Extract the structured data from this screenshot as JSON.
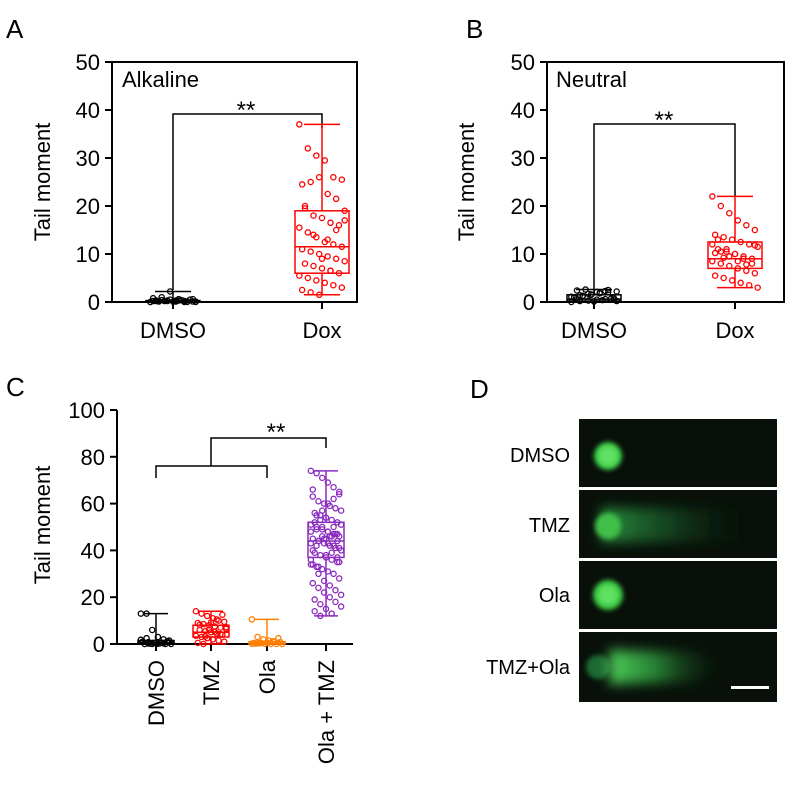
{
  "chart_data": [
    {
      "panel_letter": "A",
      "type": "boxplot",
      "inset_label": "Alkaline",
      "ylabel": "Tail moment",
      "ylim": [
        0,
        50
      ],
      "yticks": [
        "0",
        "10",
        "20",
        "30",
        "40",
        "50"
      ],
      "categories": [
        "DMSO",
        "Dox"
      ],
      "significance": "**",
      "series": [
        {
          "name": "DMSO",
          "color": "#000000",
          "min": 0,
          "q1": 0,
          "median": 0,
          "q3": 0.3,
          "max": 2.2,
          "points": [
            0,
            0.1,
            0.2,
            0.3,
            0,
            0.1,
            0.2,
            0.4,
            0.5,
            0.6,
            0,
            0.1,
            0.3,
            0.2,
            0.1,
            0.4,
            0.5,
            0,
            0.2,
            0.3,
            0.1,
            0.2,
            0.6,
            0.8,
            1.0,
            2.2,
            0.3,
            0.1,
            0,
            0.2
          ]
        },
        {
          "name": "Dox",
          "color": "#ff0000",
          "min": 1.5,
          "q1": 6,
          "median": 11.5,
          "q3": 19,
          "max": 37,
          "points": [
            37,
            32,
            30.5,
            29.5,
            26,
            25.5,
            24.5,
            25,
            26,
            22.5,
            21.5,
            19,
            19.5,
            18,
            17.5,
            16.5,
            16,
            15.5,
            14.5,
            13.5,
            12.5,
            12,
            11.5,
            11,
            10.5,
            10,
            9.5,
            9,
            8.5,
            8,
            7.5,
            7,
            6.5,
            6,
            5.5,
            5,
            4.5,
            4,
            3.5,
            3,
            2.5,
            2,
            1.5,
            13,
            15,
            17,
            20,
            14,
            9,
            6.5
          ]
        }
      ]
    },
    {
      "panel_letter": "B",
      "type": "boxplot",
      "inset_label": "Neutral",
      "ylabel": "Tail moment",
      "ylim": [
        0,
        50
      ],
      "yticks": [
        "0",
        "10",
        "20",
        "30",
        "40",
        "50"
      ],
      "categories": [
        "DMSO",
        "Dox"
      ],
      "significance": "**",
      "series": [
        {
          "name": "DMSO",
          "color": "#000000",
          "min": 0,
          "q1": 0.2,
          "median": 0.6,
          "q3": 1.5,
          "max": 2.6,
          "points": [
            0,
            0.2,
            0.3,
            0.5,
            0.6,
            0.8,
            1.0,
            1.2,
            1.5,
            1.8,
            2.0,
            2.2,
            2.4,
            2.6,
            0.1,
            0.4,
            0.7,
            1.1,
            1.4,
            1.7,
            2.1,
            2.3,
            0.5,
            0.9,
            1.3,
            1.6,
            1.9,
            2.5,
            0.2,
            0.6
          ]
        },
        {
          "name": "Dox",
          "color": "#ff0000",
          "min": 3,
          "q1": 7,
          "median": 9,
          "q3": 12.5,
          "max": 22,
          "points": [
            22,
            20,
            18.5,
            17,
            16,
            15,
            14,
            13.5,
            13,
            12.5,
            12,
            11.5,
            11,
            10.5,
            10,
            9.5,
            9,
            8.5,
            8,
            7.5,
            7,
            6.5,
            6,
            5.5,
            5,
            4.5,
            4,
            3.5,
            3,
            13,
            11,
            10,
            9,
            8,
            12,
            10.5,
            9.5,
            8.5,
            7.8,
            11.8,
            10.2,
            9.2
          ]
        }
      ]
    },
    {
      "panel_letter": "C",
      "type": "boxplot",
      "ylabel": "Tail moment",
      "ylim": [
        0,
        100
      ],
      "yticks": [
        "0",
        "20",
        "40",
        "60",
        "80",
        "100"
      ],
      "categories": [
        "DMSO",
        "TMZ",
        "Ola",
        "Ola + TMZ"
      ],
      "significance": "**",
      "series": [
        {
          "name": "DMSO",
          "color": "#000000",
          "min": 0,
          "q1": 0,
          "median": 0.5,
          "q3": 1.5,
          "max": 13,
          "points": [
            13,
            13,
            6,
            3,
            2,
            1.5,
            1,
            0.8,
            0.5,
            0.3,
            0,
            0,
            0,
            0.2,
            0.4,
            0.6,
            1.2,
            1.8,
            2.5,
            0,
            0.1,
            0.3,
            0.7,
            1.0,
            0.2,
            0.5
          ]
        },
        {
          "name": "TMZ",
          "color": "#ff0000",
          "min": 0,
          "q1": 3,
          "median": 5,
          "q3": 8,
          "max": 14,
          "points": [
            14,
            13,
            12,
            11,
            10,
            9.5,
            9,
            8.5,
            8,
            7.5,
            7,
            6.5,
            6,
            5.5,
            5,
            4.5,
            4,
            3.5,
            3,
            2.5,
            2,
            1.5,
            1,
            0.5,
            0,
            6.2,
            5.2,
            4.2,
            7.2,
            8.2,
            3.2,
            9.2,
            10.5,
            12.5
          ]
        },
        {
          "name": "Ola",
          "color": "#ff7f00",
          "min": 0,
          "q1": 0,
          "median": 0.3,
          "q3": 1,
          "max": 10.5,
          "points": [
            10.5,
            3,
            2,
            1.5,
            1,
            0.8,
            0.5,
            0.3,
            0.1,
            0,
            0,
            0,
            0.2,
            0.4,
            0.6,
            1.2,
            2.5,
            0.1,
            0.3
          ]
        },
        {
          "name": "Ola + TMZ",
          "color": "#8a2bbf",
          "min": 12,
          "q1": 37,
          "median": 44,
          "q3": 52,
          "max": 74,
          "points": [
            74,
            73,
            71,
            69,
            67,
            65,
            63,
            61,
            60,
            59,
            58,
            57,
            56,
            55,
            54,
            53,
            52,
            51,
            50,
            49,
            48,
            47,
            46,
            45,
            44,
            43,
            42,
            41,
            40,
            39,
            38,
            37,
            36,
            35,
            34,
            33,
            32,
            31,
            30,
            28,
            26,
            24,
            22,
            20,
            18,
            16,
            14,
            12,
            45,
            46,
            47,
            48,
            49,
            50,
            43,
            42,
            41,
            40,
            44,
            45,
            46,
            47,
            51,
            52,
            53,
            38,
            39,
            37,
            36,
            55,
            57,
            60,
            62,
            64,
            66,
            30,
            27,
            25,
            23,
            21,
            19,
            17,
            15,
            13,
            44,
            43,
            42,
            46,
            48,
            50,
            35,
            34,
            33
          ]
        }
      ]
    }
  ],
  "panel_d": {
    "panel_letter": "D",
    "rows": [
      {
        "label": "DMSO"
      },
      {
        "label": "TMZ"
      },
      {
        "label": "Ola"
      },
      {
        "label": "TMZ+Ola"
      }
    ]
  }
}
